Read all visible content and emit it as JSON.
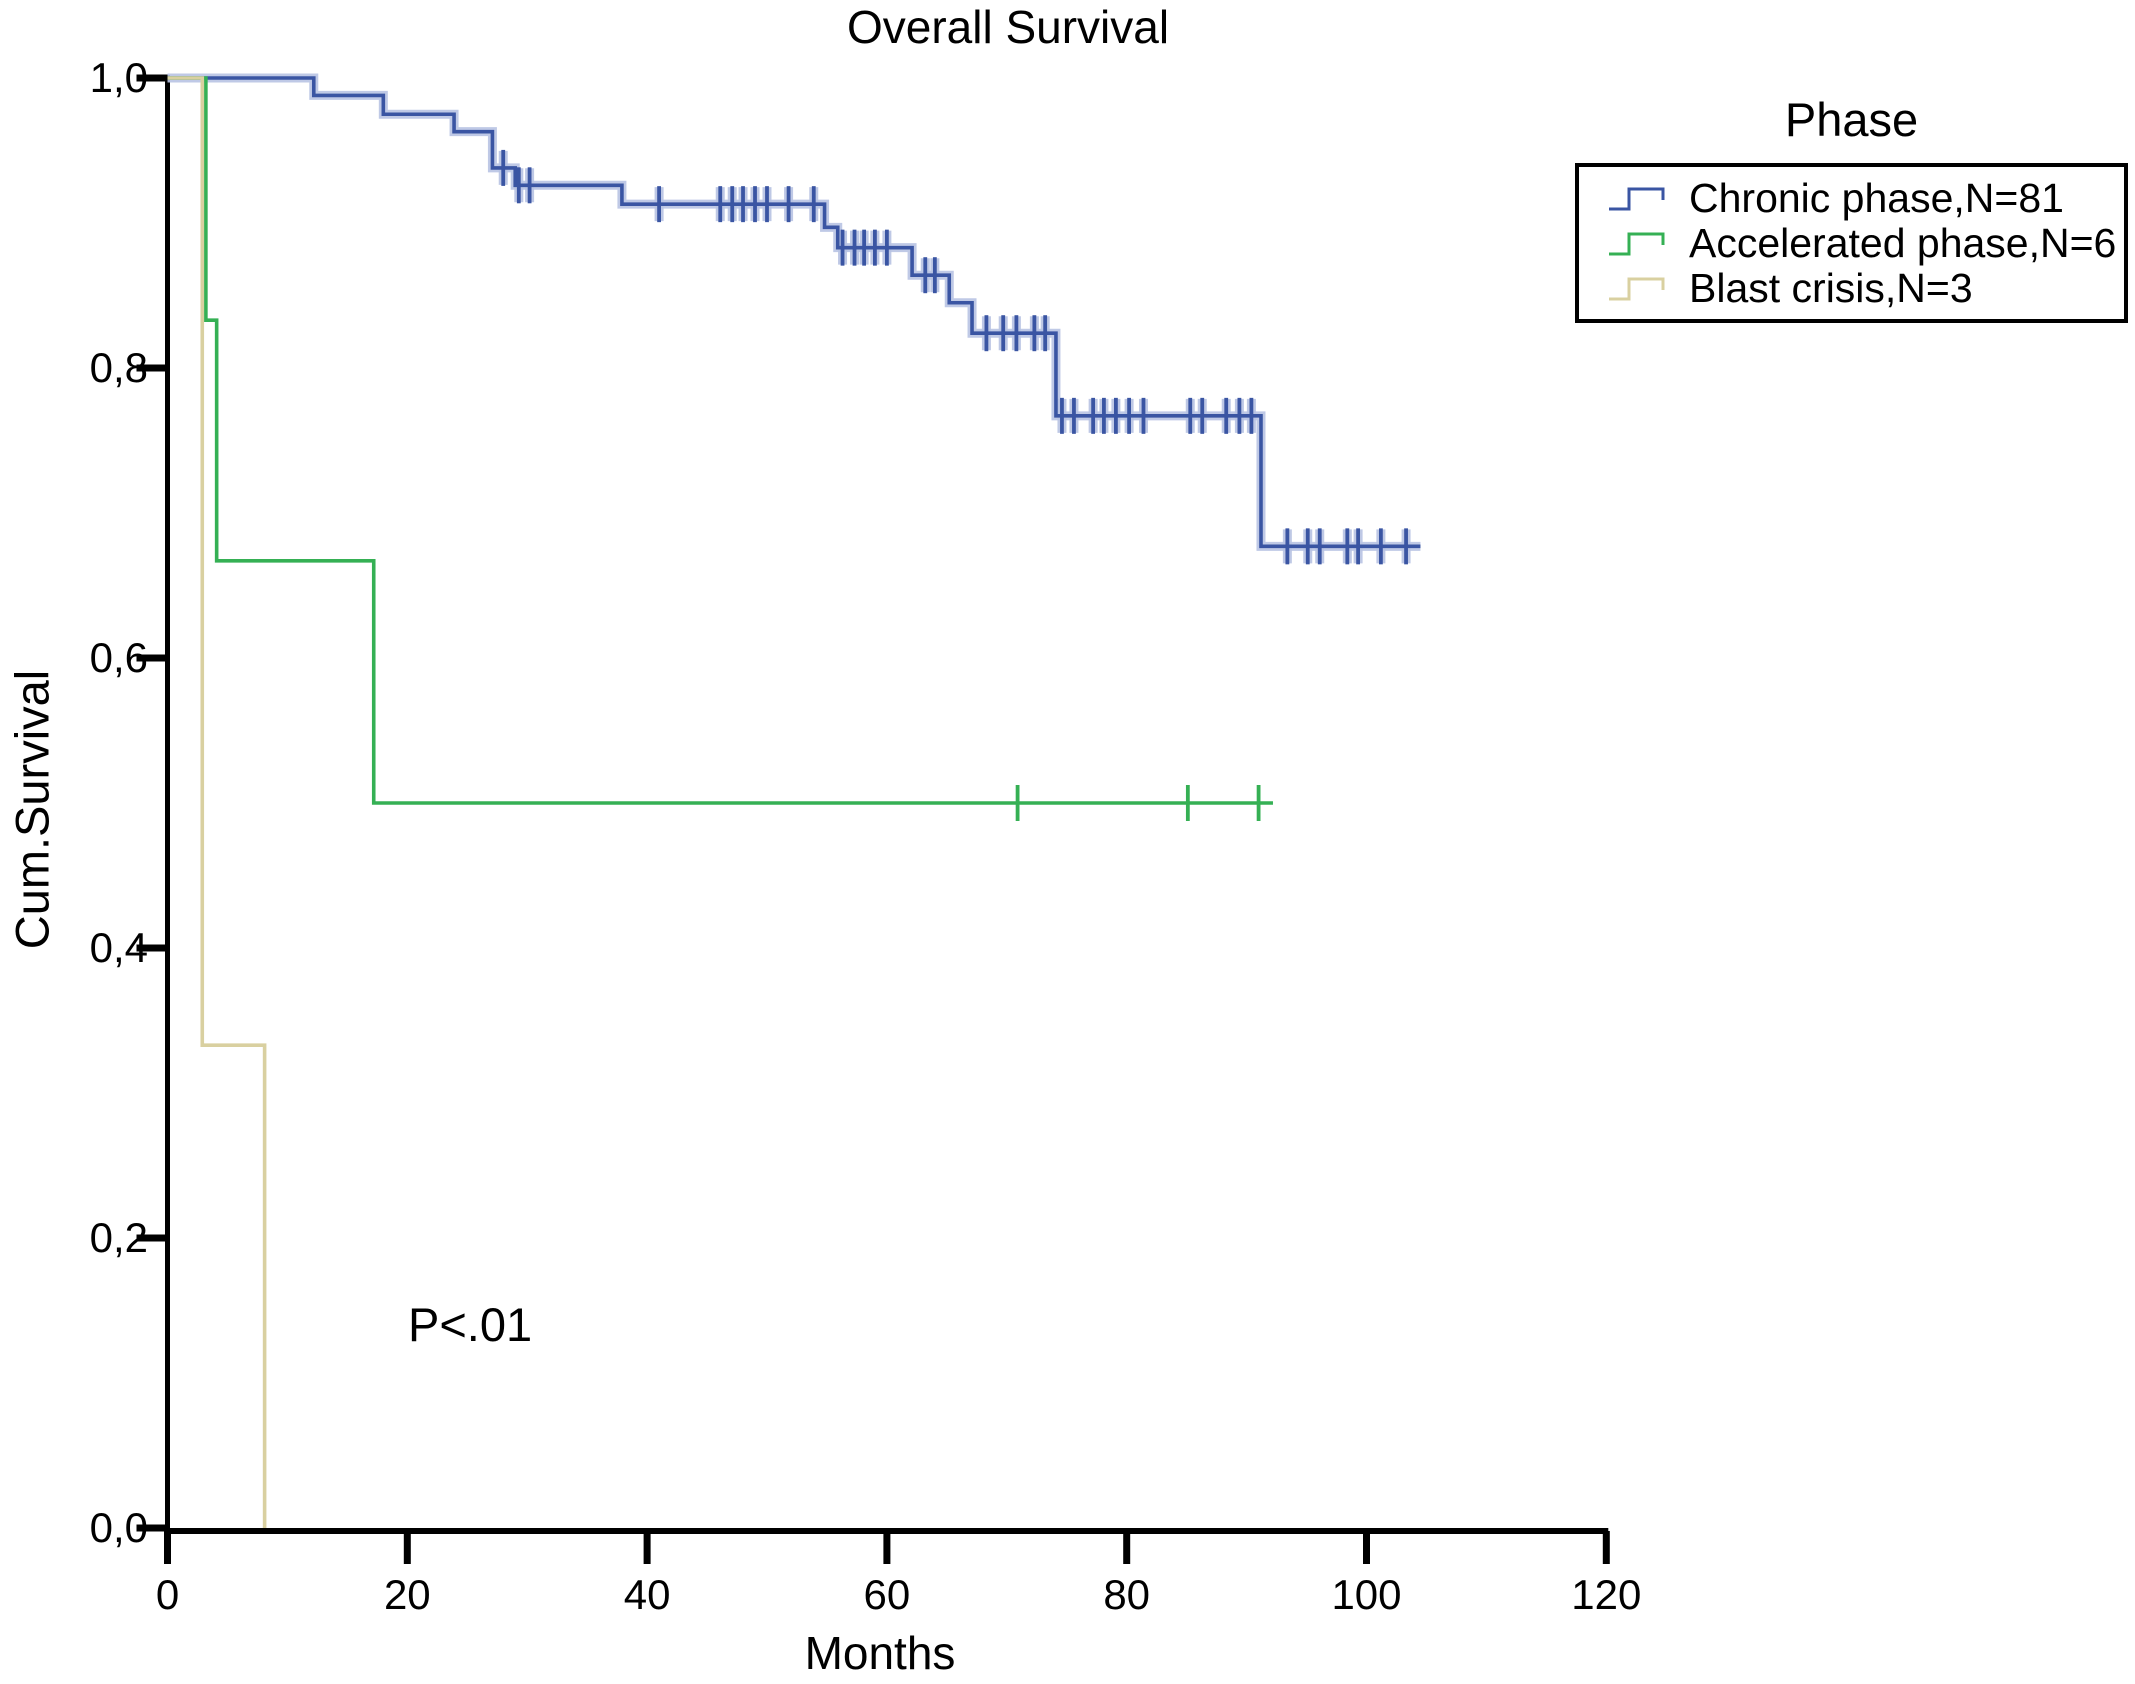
{
  "title": "Overall Survival",
  "p_value_label": "P<.01",
  "axes": {
    "x": {
      "label": "Months",
      "ticks": [
        0,
        20,
        40,
        60,
        80,
        100,
        120
      ],
      "range": [
        0,
        120
      ]
    },
    "y": {
      "label": "Cum.Survival",
      "ticks": [
        {
          "label": "0,0",
          "value": 0.0
        },
        {
          "label": "0,2",
          "value": 0.2
        },
        {
          "label": "0,4",
          "value": 0.4
        },
        {
          "label": "0,6",
          "value": 0.6
        },
        {
          "label": "0,8",
          "value": 0.8
        },
        {
          "label": "1,0",
          "value": 1.0
        }
      ],
      "range": [
        0,
        1
      ]
    }
  },
  "legend": {
    "title": "Phase",
    "position": "top-right",
    "items": [
      {
        "label": "Chronic phase,N=81",
        "color": "#3a55a3"
      },
      {
        "label": "Accelerated phase,N=6",
        "color": "#35b054"
      },
      {
        "label": "Blast crisis,N=3",
        "color": "#d9d0a0"
      }
    ]
  },
  "chart_data": {
    "type": "line",
    "subtype": "kaplan-meier-step",
    "title": "Overall Survival",
    "xlabel": "Months",
    "ylabel": "Cum.Survival",
    "xlim": [
      0,
      120
    ],
    "ylim": [
      0.0,
      1.0
    ],
    "grid": false,
    "annotation": "P<.01",
    "series": [
      {
        "name": "Chronic phase,N=81",
        "color": "#3a55a3",
        "halo_color": "#b8c3e3",
        "end_month": 104.5,
        "steps": [
          [
            0,
            1.0
          ],
          [
            12.2,
            0.988
          ],
          [
            18.0,
            0.975
          ],
          [
            23.9,
            0.963
          ],
          [
            27.1,
            0.938
          ],
          [
            29.0,
            0.926
          ],
          [
            37.9,
            0.913
          ],
          [
            54.8,
            0.897
          ],
          [
            55.9,
            0.883
          ],
          [
            62.1,
            0.864
          ],
          [
            65.2,
            0.845
          ],
          [
            67.1,
            0.824
          ],
          [
            74.1,
            0.767
          ],
          [
            91.2,
            0.677
          ]
        ],
        "censors": [
          [
            28.0,
            0.938
          ],
          [
            29.3,
            0.926
          ],
          [
            30.2,
            0.926
          ],
          [
            41.0,
            0.913
          ],
          [
            46.1,
            0.913
          ],
          [
            47.1,
            0.913
          ],
          [
            48.0,
            0.913
          ],
          [
            49.0,
            0.913
          ],
          [
            50.0,
            0.913
          ],
          [
            51.8,
            0.913
          ],
          [
            53.9,
            0.913
          ],
          [
            56.3,
            0.883
          ],
          [
            57.3,
            0.883
          ],
          [
            58.1,
            0.883
          ],
          [
            59.0,
            0.883
          ],
          [
            60.0,
            0.883
          ],
          [
            63.2,
            0.864
          ],
          [
            64.0,
            0.864
          ],
          [
            68.3,
            0.824
          ],
          [
            69.7,
            0.824
          ],
          [
            70.8,
            0.824
          ],
          [
            72.3,
            0.824
          ],
          [
            73.2,
            0.824
          ],
          [
            74.6,
            0.767
          ],
          [
            75.6,
            0.767
          ],
          [
            77.2,
            0.767
          ],
          [
            78.1,
            0.767
          ],
          [
            79.1,
            0.767
          ],
          [
            80.2,
            0.767
          ],
          [
            81.4,
            0.767
          ],
          [
            85.3,
            0.767
          ],
          [
            86.3,
            0.767
          ],
          [
            88.3,
            0.767
          ],
          [
            89.4,
            0.767
          ],
          [
            90.4,
            0.767
          ],
          [
            93.4,
            0.677
          ],
          [
            95.1,
            0.677
          ],
          [
            96.1,
            0.677
          ],
          [
            98.4,
            0.677
          ],
          [
            99.3,
            0.677
          ],
          [
            101.2,
            0.677
          ],
          [
            103.3,
            0.677
          ]
        ]
      },
      {
        "name": "Accelerated phase,N=6",
        "color": "#35b054",
        "halo_color": "",
        "end_month": 92.2,
        "steps": [
          [
            0,
            1.0
          ],
          [
            3.2,
            0.833
          ],
          [
            4.1,
            0.667
          ],
          [
            17.2,
            0.5
          ]
        ],
        "censors": [
          [
            70.9,
            0.5
          ],
          [
            85.1,
            0.5
          ],
          [
            91.0,
            0.5
          ]
        ]
      },
      {
        "name": "Blast crisis,N=3",
        "color": "#d9d0a0",
        "halo_color": "",
        "end_month": 8.1,
        "steps": [
          [
            0,
            1.0
          ],
          [
            2.9,
            0.333
          ],
          [
            8.1,
            0.0
          ]
        ],
        "censors": []
      }
    ]
  }
}
